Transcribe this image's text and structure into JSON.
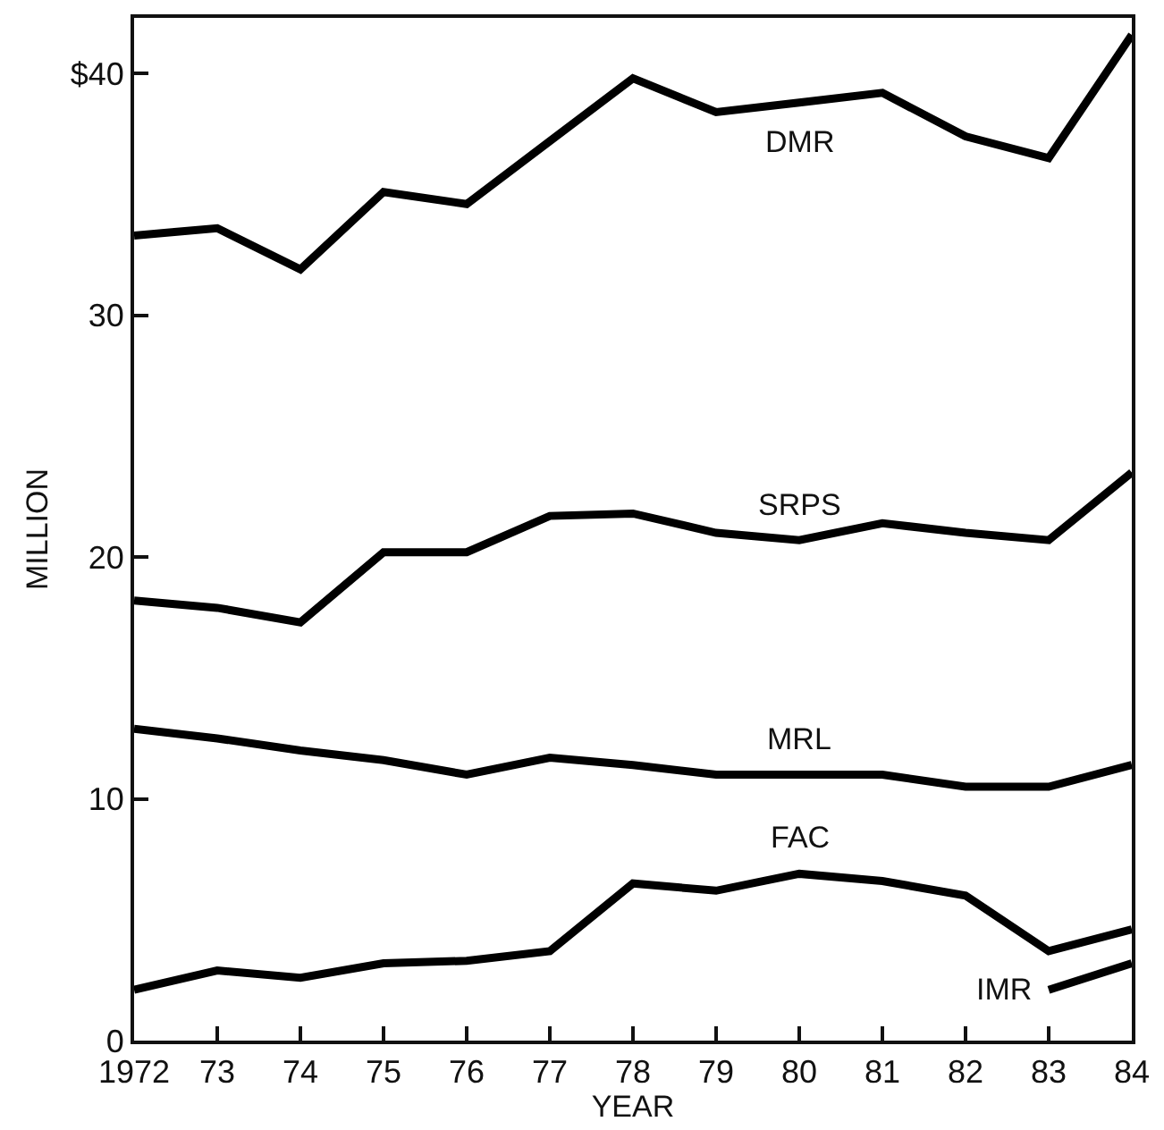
{
  "chart_data": {
    "type": "line",
    "xlabel": "YEAR",
    "ylabel": "MILLION",
    "x": [
      1972,
      1973,
      1974,
      1975,
      1976,
      1977,
      1978,
      1979,
      1980,
      1981,
      1982,
      1983,
      1984
    ],
    "series": [
      {
        "name": "DMR",
        "color": "#000000",
        "values": [
          33.3,
          33.6,
          31.9,
          35.1,
          34.6,
          37.2,
          39.8,
          38.4,
          38.8,
          39.2,
          37.4,
          36.5,
          41.6
        ]
      },
      {
        "name": "SRPS",
        "color": "#000000",
        "values": [
          18.2,
          17.9,
          17.3,
          20.2,
          20.2,
          21.7,
          21.8,
          21.0,
          20.7,
          21.4,
          21.0,
          20.7,
          23.5
        ]
      },
      {
        "name": "MRL",
        "color": "#000000",
        "values": [
          12.9,
          12.5,
          12.0,
          11.6,
          11.0,
          11.7,
          11.4,
          11.0,
          11.0,
          11.0,
          10.5,
          10.5,
          11.4
        ]
      },
      {
        "name": "FAC",
        "color": "#000000",
        "values": [
          2.1,
          2.9,
          2.6,
          3.2,
          3.3,
          3.7,
          6.5,
          6.2,
          6.9,
          6.6,
          6.0,
          3.7,
          4.6
        ]
      },
      {
        "name": "IMR",
        "color": "#000000",
        "values": [
          null,
          null,
          null,
          null,
          null,
          null,
          null,
          null,
          null,
          null,
          null,
          2.1,
          3.2
        ]
      }
    ],
    "xlim": [
      1972,
      1984
    ],
    "xticks": [
      1972,
      {
        "value": 1973,
        "label": "73"
      },
      {
        "value": 1974,
        "label": "74"
      },
      {
        "value": 1975,
        "label": "75"
      },
      {
        "value": 1976,
        "label": "76"
      },
      {
        "value": 1977,
        "label": "77"
      },
      {
        "value": 1978,
        "label": "78"
      },
      {
        "value": 1979,
        "label": "79"
      },
      {
        "value": 1980,
        "label": "80"
      },
      {
        "value": 1981,
        "label": "81"
      },
      {
        "value": 1982,
        "label": "82"
      },
      {
        "value": 1983,
        "label": "83"
      },
      {
        "value": 1984,
        "label": "84"
      }
    ],
    "ylim": [
      0,
      42.3
    ],
    "yticks": [
      0,
      10,
      20,
      30,
      {
        "value": 40,
        "label": "$40"
      }
    ],
    "legend": false,
    "marker": "none",
    "line_style": "solid"
  }
}
